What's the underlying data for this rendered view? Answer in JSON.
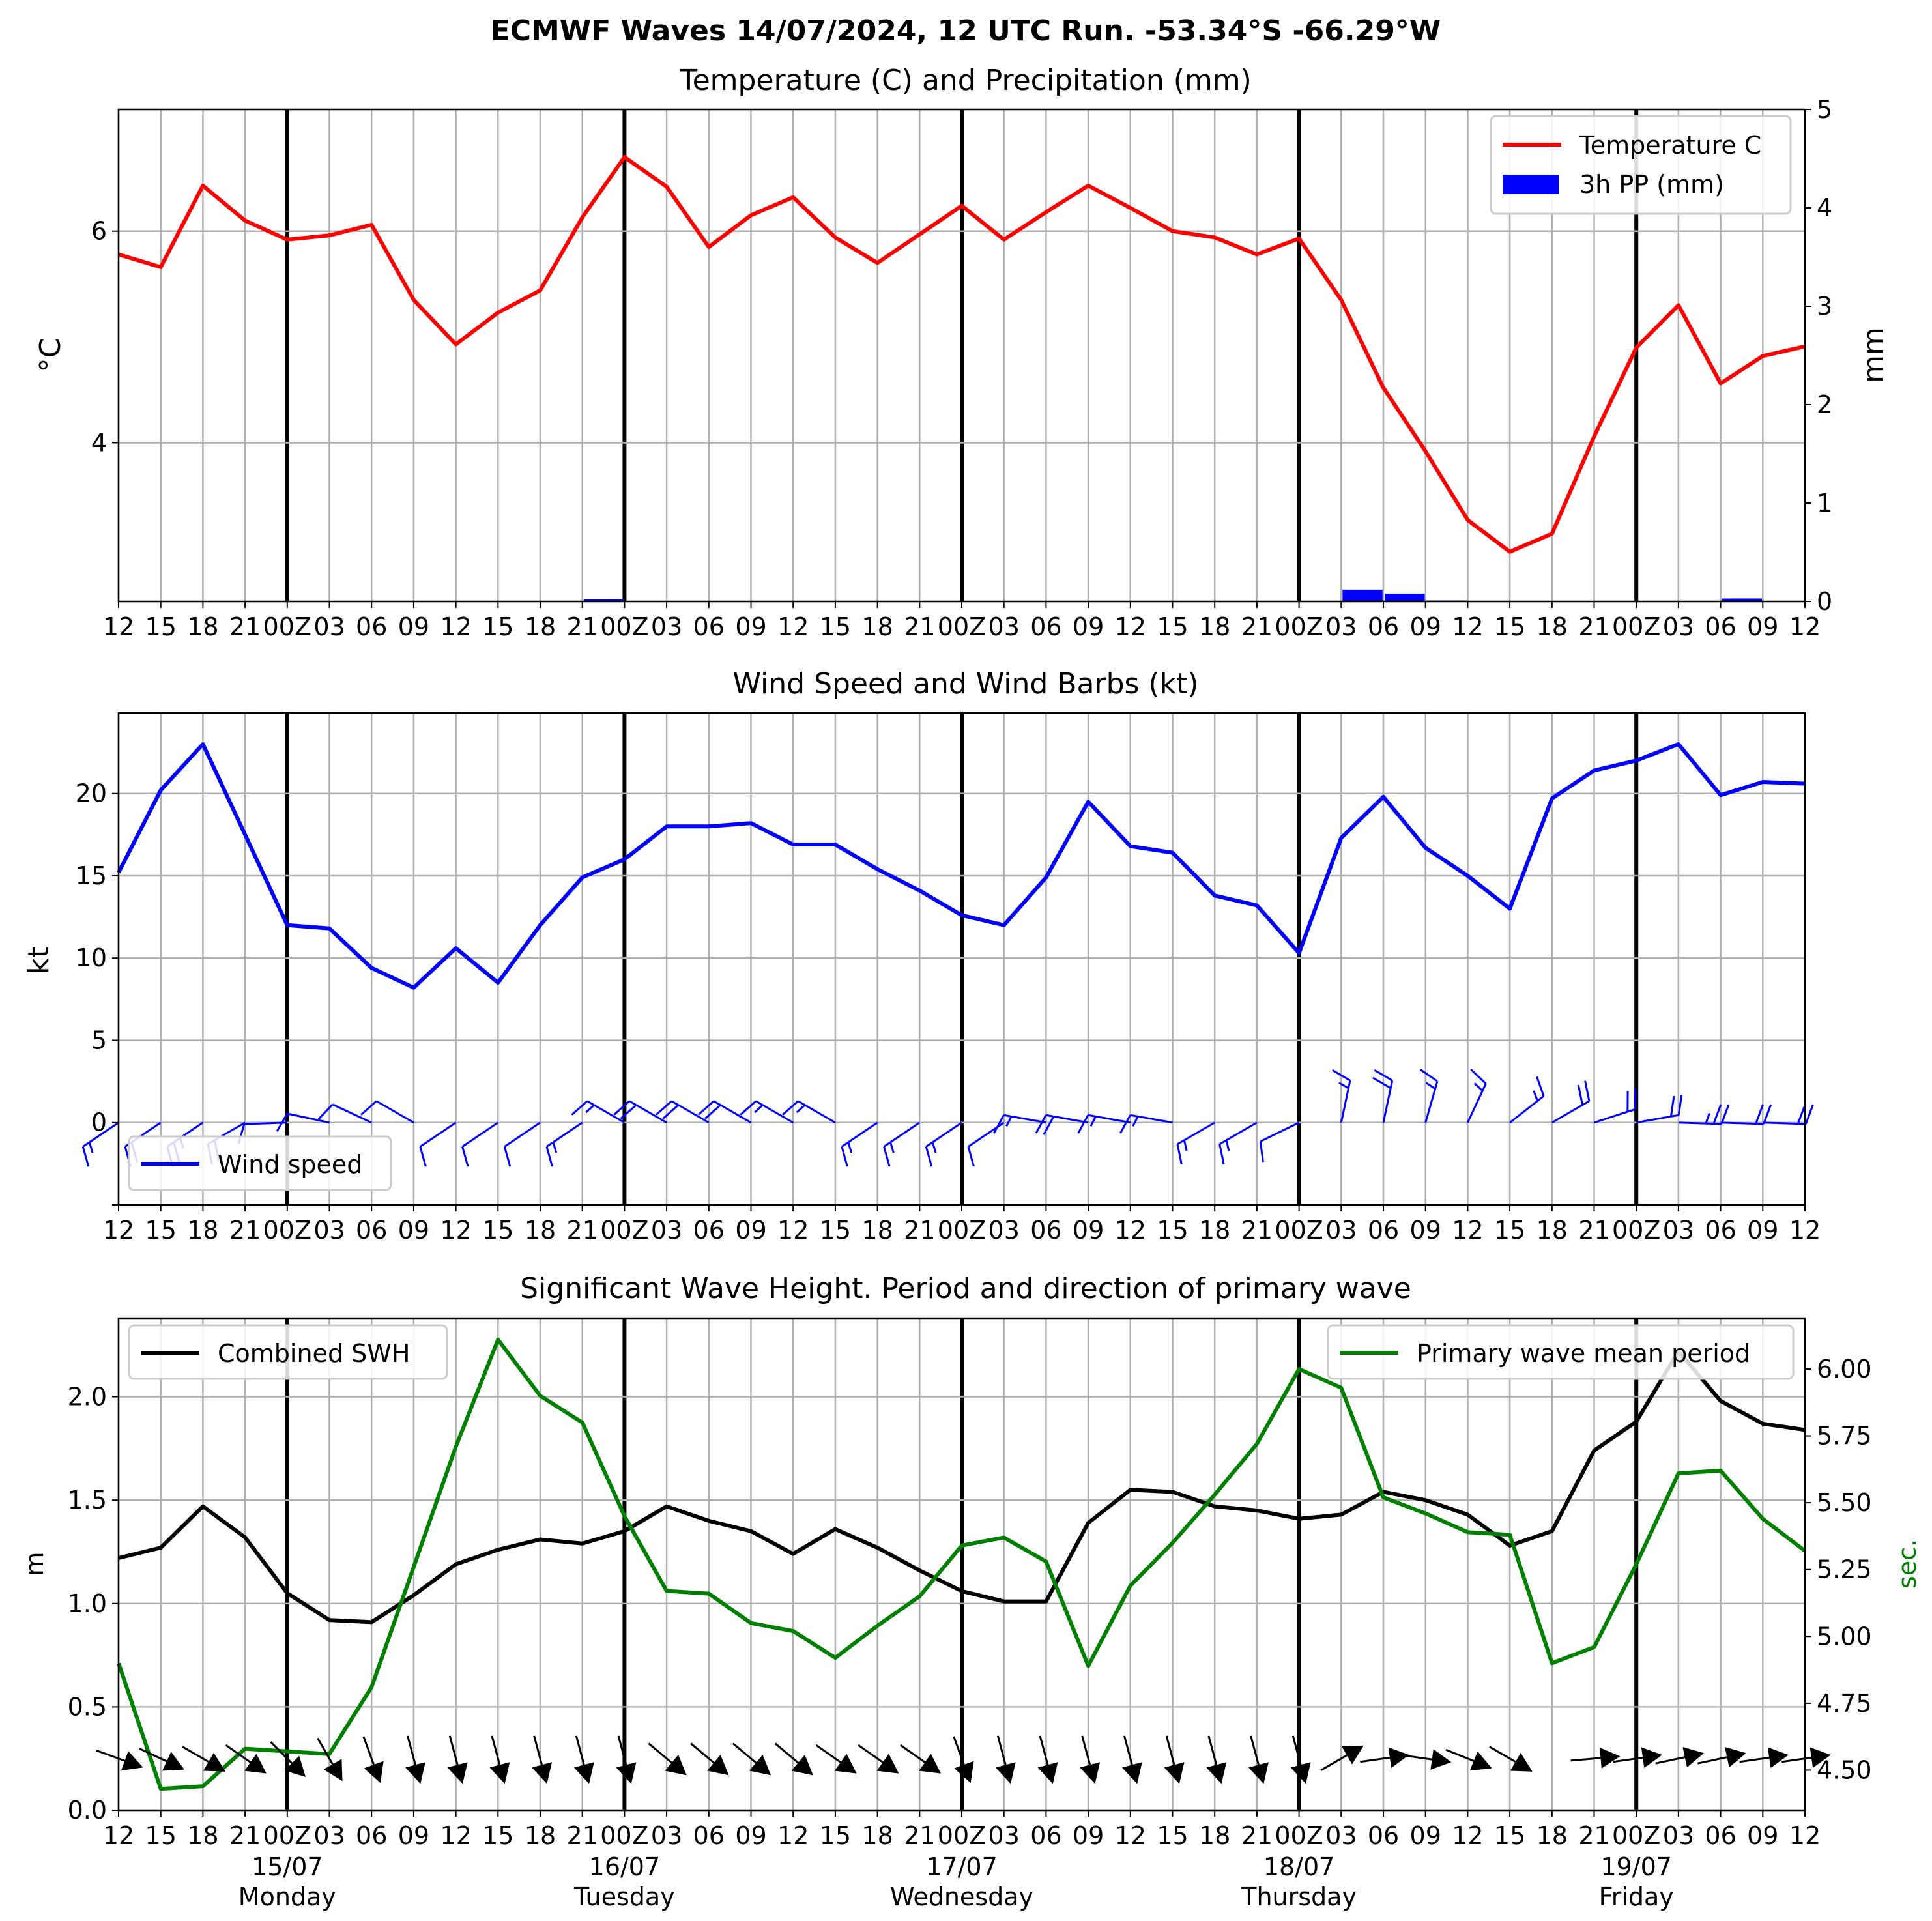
{
  "page_title": "ECMWF Waves 14/07/2024, 12 UTC Run. -53.34°S -66.29°W",
  "x_axis": {
    "tick_labels": [
      "12",
      "15",
      "18",
      "21",
      "00Z",
      "03",
      "06",
      "09",
      "12",
      "15",
      "18",
      "21",
      "00Z",
      "03",
      "06",
      "09",
      "12",
      "15",
      "18",
      "21",
      "00Z",
      "03",
      "06",
      "09",
      "12",
      "15",
      "18",
      "21",
      "00Z",
      "03",
      "06",
      "09",
      "12",
      "15",
      "18",
      "21",
      "00Z",
      "03",
      "06",
      "09",
      "12"
    ],
    "day_labels": [
      {
        "date": "15/07",
        "day": "Monday"
      },
      {
        "date": "16/07",
        "day": "Tuesday"
      },
      {
        "date": "17/07",
        "day": "Wednesday"
      },
      {
        "date": "18/07",
        "day": "Thursday"
      },
      {
        "date": "19/07",
        "day": "Friday"
      }
    ]
  },
  "chart_data": [
    {
      "type": "line",
      "title": "Temperature (C) and Precipitation (mm)",
      "ylabel": "°C",
      "ylabel_right": "mm",
      "ylim": [
        2.5,
        7.15
      ],
      "yticks": [
        4,
        6
      ],
      "ylim_right": [
        0,
        5
      ],
      "yticks_right": [
        0,
        1,
        2,
        3,
        4,
        5
      ],
      "legend_position": "top-right",
      "grid": true,
      "series": [
        {
          "name": "Temperature C",
          "color": "#ff0000",
          "values": [
            5.78,
            5.66,
            6.43,
            6.1,
            5.92,
            5.96,
            6.06,
            5.35,
            4.93,
            5.23,
            5.44,
            6.13,
            6.7,
            6.42,
            5.85,
            6.15,
            6.32,
            5.94,
            5.7,
            5.97,
            6.24,
            5.92,
            6.18,
            6.43,
            6.22,
            6.0,
            5.94,
            5.78,
            5.93,
            5.35,
            4.52,
            3.92,
            3.27,
            2.97,
            3.14,
            4.06,
            4.9,
            5.3,
            4.56,
            4.82,
            4.91
          ]
        },
        {
          "name": "3h PP (mm)",
          "color": "#0000ff",
          "kind": "bar",
          "values": [
            0,
            0,
            0,
            0,
            0,
            0,
            0,
            0,
            0,
            0,
            0,
            0.02,
            0,
            0,
            0,
            0,
            0,
            0,
            0,
            0,
            0,
            0,
            0,
            0,
            0,
            0,
            0,
            0,
            0,
            0.12,
            0.08,
            0.01,
            0,
            0,
            0,
            0,
            0,
            0,
            0.03,
            0,
            0
          ]
        }
      ]
    },
    {
      "type": "line",
      "title": "Wind Speed and Wind Barbs (kt)",
      "ylabel": "kt",
      "ylim": [
        -5,
        24.9
      ],
      "yticks": [
        0,
        5,
        10,
        15,
        20
      ],
      "legend_position": "bottom-left",
      "grid": true,
      "series": [
        {
          "name": "Wind speed",
          "color": "#0000ff",
          "values": [
            15.2,
            20.2,
            23.0,
            17.5,
            12.0,
            11.8,
            9.4,
            8.2,
            10.6,
            8.5,
            12.0,
            14.9,
            16.0,
            18.0,
            18.0,
            18.2,
            16.9,
            16.9,
            15.4,
            14.1,
            12.6,
            12.0,
            14.9,
            19.5,
            16.8,
            16.4,
            13.8,
            13.2,
            10.3,
            17.3,
            19.8,
            16.7,
            15.0,
            13.0,
            19.7,
            21.4,
            22.0,
            23.0,
            19.9,
            20.7,
            20.6
          ]
        }
      ],
      "wind_barbs": {
        "color": "#0000ff",
        "shown_every": 1,
        "direction_deg": [
          236,
          236,
          236,
          240,
          268,
          282,
          295,
          300,
          236,
          236,
          236,
          236,
          300,
          300,
          300,
          300,
          300,
          300,
          236,
          236,
          236,
          236,
          280,
          280,
          280,
          280,
          240,
          240,
          244,
          12,
          12,
          16,
          25,
          52,
          60,
          72,
          80,
          92,
          92,
          92,
          92
        ]
      }
    },
    {
      "type": "line",
      "title": "Significant Wave Height. Period and direction of primary wave",
      "ylabel": "m",
      "ylabel_right": "sec.",
      "ylim": [
        0,
        2.38
      ],
      "yticks": [
        0.0,
        0.5,
        1.0,
        1.5,
        2.0
      ],
      "ylim_right": [
        4.35,
        6.19
      ],
      "yticks_right": [
        4.5,
        4.75,
        5.0,
        5.25,
        5.5,
        5.75,
        6.0
      ],
      "grid": true,
      "series": [
        {
          "name": "Combined SWH",
          "color": "#000000",
          "legend_position": "top-left",
          "values": [
            1.22,
            1.27,
            1.47,
            1.32,
            1.05,
            0.92,
            0.91,
            1.04,
            1.19,
            1.26,
            1.31,
            1.29,
            1.35,
            1.47,
            1.4,
            1.35,
            1.24,
            1.36,
            1.27,
            1.16,
            1.06,
            1.01,
            1.01,
            1.39,
            1.55,
            1.54,
            1.47,
            1.45,
            1.41,
            1.43,
            1.54,
            1.5,
            1.43,
            1.28,
            1.35,
            1.74,
            1.88,
            2.22,
            1.98,
            1.87,
            1.84
          ]
        },
        {
          "name": "Primary wave mean period",
          "color": "#008000",
          "legend_position": "top-right",
          "axis": "right",
          "values": [
            4.9,
            4.43,
            4.44,
            4.58,
            4.57,
            4.56,
            4.81,
            5.26,
            5.71,
            6.11,
            5.9,
            5.8,
            5.45,
            5.17,
            5.16,
            5.05,
            5.02,
            4.92,
            5.04,
            5.15,
            5.34,
            5.37,
            5.28,
            4.89,
            5.19,
            5.35,
            5.53,
            5.72,
            6.0,
            5.93,
            5.52,
            5.46,
            5.39,
            5.38,
            4.9,
            4.96,
            5.27,
            5.61,
            5.62,
            5.44,
            5.32
          ]
        }
      ],
      "wave_direction_arrows": {
        "color": "#000000",
        "direction_deg": [
          290,
          295,
          300,
          305,
          315,
          330,
          340,
          345,
          345,
          345,
          345,
          345,
          345,
          310,
          310,
          310,
          310,
          305,
          305,
          305,
          340,
          345,
          345,
          345,
          345,
          345,
          345,
          345,
          345,
          240,
          262,
          278,
          292,
          300,
          null,
          265,
          262,
          258,
          258,
          262,
          262
        ]
      }
    }
  ]
}
